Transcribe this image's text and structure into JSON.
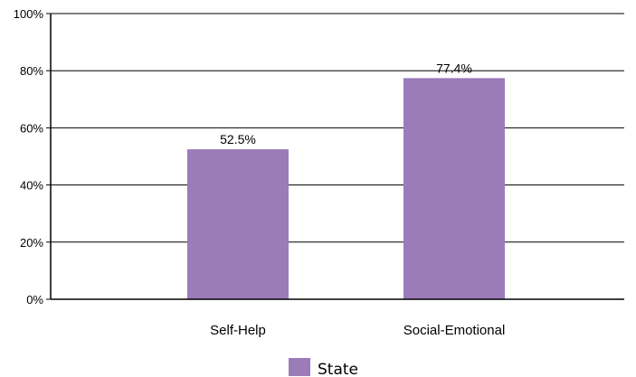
{
  "chart_data": {
    "type": "bar",
    "categories": [
      "Self-Help",
      "Social-Emotional"
    ],
    "series": [
      {
        "name": "State",
        "values": [
          52.5,
          77.4
        ],
        "labels": [
          "52.5%",
          "77.4%"
        ],
        "color": "#9b7bb8"
      }
    ],
    "ylim": [
      0,
      100
    ],
    "yticks": [
      "0%",
      "20%",
      "40%",
      "60%",
      "80%",
      "100%"
    ],
    "ytick_values": [
      0,
      20,
      40,
      60,
      80,
      100
    ],
    "grid": true,
    "legend_position": "bottom-center"
  }
}
